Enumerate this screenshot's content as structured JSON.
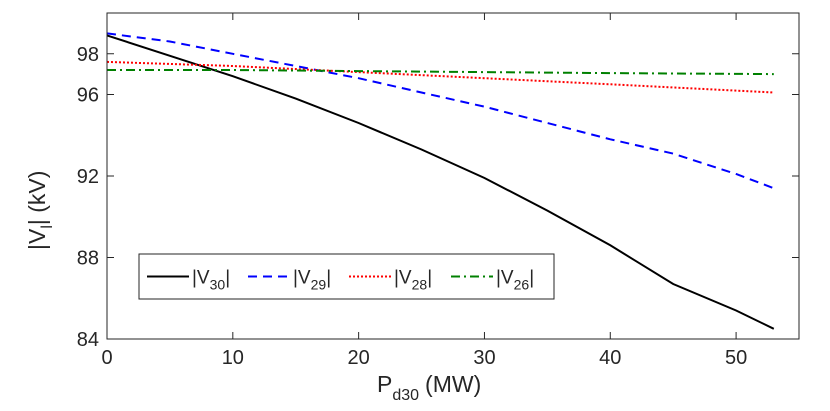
{
  "chart_data": {
    "type": "line",
    "title": "",
    "xlabel": {
      "main": "P",
      "sub": "d30",
      "unit": "(MW)"
    },
    "ylabel": {
      "main": "|V",
      "sub": "l",
      "unit": "| (kV)"
    },
    "xlim": [
      0,
      55
    ],
    "ylim": [
      84,
      100
    ],
    "xticks": [
      0,
      10,
      20,
      30,
      40,
      50
    ],
    "yticks": [
      84,
      88,
      92,
      96,
      98
    ],
    "grid": false,
    "legend_position": "lower-left inside",
    "series": [
      {
        "name": "|V30|",
        "label_main": "|V",
        "label_sub": "30",
        "label_end": "|",
        "color": "#000000",
        "dash": "solid",
        "x": [
          0,
          5,
          10,
          15,
          20,
          25,
          30,
          35,
          40,
          45,
          50,
          53
        ],
        "y": [
          98.9,
          97.9,
          96.9,
          95.8,
          94.6,
          93.3,
          91.9,
          90.3,
          88.6,
          86.7,
          85.4,
          84.5
        ]
      },
      {
        "name": "|V29|",
        "label_main": "|V",
        "label_sub": "29",
        "label_end": "|",
        "color": "#0000ff",
        "dash": "dashed",
        "x": [
          0,
          5,
          10,
          15,
          20,
          25,
          30,
          35,
          40,
          45,
          50,
          53
        ],
        "y": [
          99.0,
          98.6,
          98.0,
          97.4,
          96.8,
          96.1,
          95.4,
          94.6,
          93.8,
          93.1,
          92.1,
          91.4
        ]
      },
      {
        "name": "|V28|",
        "label_main": "|V",
        "label_sub": "28",
        "label_end": "|",
        "color": "#ff0000",
        "dash": "dotted",
        "x": [
          0,
          10,
          20,
          30,
          40,
          53
        ],
        "y": [
          97.6,
          97.4,
          97.1,
          96.8,
          96.5,
          96.1
        ]
      },
      {
        "name": "|V26|",
        "label_main": "|V",
        "label_sub": "26",
        "label_end": "|",
        "color": "#008000",
        "dash": "dashdot",
        "x": [
          0,
          10,
          20,
          30,
          40,
          53
        ],
        "y": [
          97.2,
          97.2,
          97.15,
          97.1,
          97.05,
          97.0
        ]
      }
    ]
  }
}
